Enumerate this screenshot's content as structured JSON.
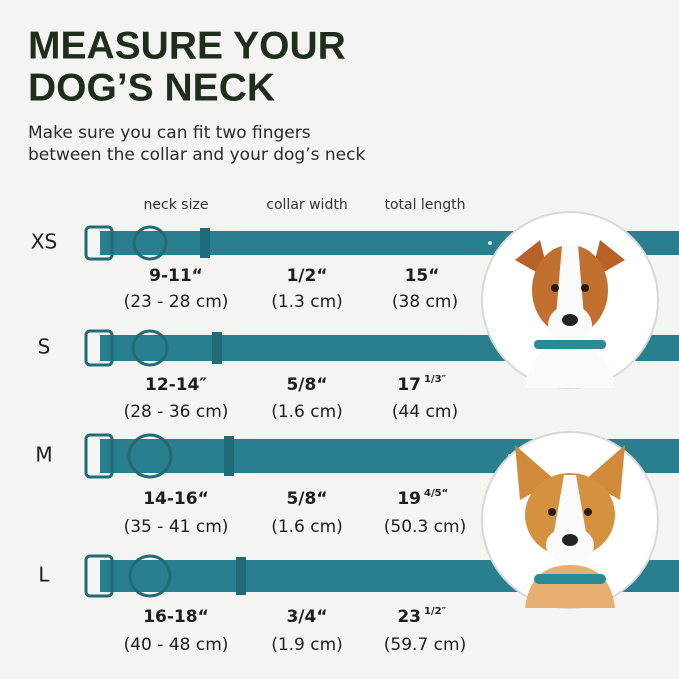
{
  "title": {
    "lines": [
      "MEASURE YOUR",
      "DOG’S  NECK"
    ]
  },
  "subtitle": {
    "lines": [
      "Make sure you can fit two fingers",
      "between the collar and your dog’s neck"
    ]
  },
  "columns": [
    "neck size",
    "collar width",
    "total length"
  ],
  "rows": [
    {
      "size": "XS",
      "neck": "9-11“",
      "neck_cm": "(23 - 28 cm)",
      "width": "1/2“",
      "width_cm": "(1.3 cm)",
      "length": "15“",
      "length_cm": "(38 cm)"
    },
    {
      "size": "S",
      "neck": "12-14″",
      "neck_cm": "(28 - 36 cm)",
      "width": "5/8“",
      "width_cm": "(1.6 cm)",
      "length": "17",
      "length_fraction": "1/3″",
      "length_cm": "(44 cm)"
    },
    {
      "size": "M",
      "neck": "14-16“",
      "neck_cm": "(35 - 41 cm)",
      "width": "5/8“",
      "width_cm": "(1.6 cm)",
      "length": "19",
      "length_fraction": "4/5“",
      "length_cm": "(50.3 cm)"
    },
    {
      "size": "L",
      "neck": "16-18“",
      "neck_cm": "(40 - 48 cm)",
      "width": "3/4“",
      "width_cm": "(1.9 cm)",
      "length": "23",
      "length_fraction": "1/2″",
      "length_cm": "(59.7 cm)"
    }
  ]
}
